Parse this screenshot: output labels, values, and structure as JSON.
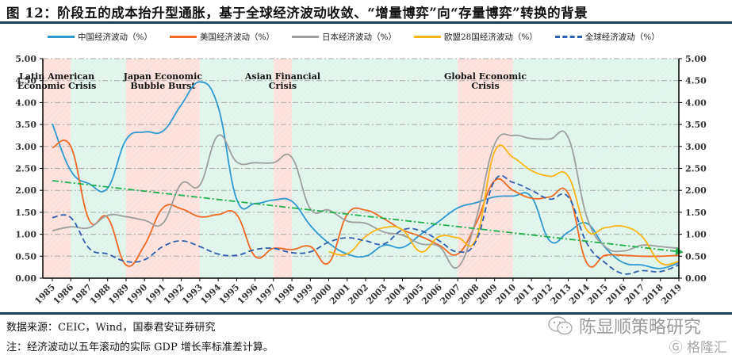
{
  "header": {
    "title": "图 12：阶段五的成本抬升型通胀，基于全球经济波动收敛、“增量博弈”向“存量博弈”转换的背景"
  },
  "footer": {
    "source": "数据来源：CEIC，Wind，国泰君安证券研究",
    "note": "注：经济波动以五年滚动的实际 GDP 增长率标准差计算。",
    "watermark": "陈显顺策略研究",
    "watermark_icon": "wechat-icon",
    "watermark2": "格隆汇"
  },
  "chart_data": {
    "type": "line",
    "title": "图 12：阶段五的成本抬升型通胀，基于全球经济波动收敛、“增量博弈”向“存量博弈”转换的背景",
    "xlabel": "",
    "ylabel": "",
    "ylim": [
      0,
      5
    ],
    "y_ticks": [
      "0.00",
      "0.50",
      "1.00",
      "1.50",
      "2.00",
      "2.50",
      "3.00",
      "3.50",
      "4.00",
      "4.50",
      "5.00"
    ],
    "grid": true,
    "legend_position": "top",
    "categories": [
      "1985",
      "1986",
      "1987",
      "1988",
      "1989",
      "1990",
      "1991",
      "1992",
      "1993",
      "1994",
      "1995",
      "1996",
      "1997",
      "1998",
      "1999",
      "2000",
      "2001",
      "2002",
      "2003",
      "2004",
      "2005",
      "2006",
      "2007",
      "2008",
      "2009",
      "2010",
      "2011",
      "2012",
      "2013",
      "2014",
      "2015",
      "2016",
      "2017",
      "2018",
      "2019"
    ],
    "series": [
      {
        "name": "中国经济波动（%）",
        "color": "#2e9ad0",
        "style": "solid",
        "values": [
          3.52,
          2.45,
          2.15,
          2.05,
          3.15,
          3.33,
          3.35,
          3.95,
          4.47,
          3.9,
          1.8,
          1.7,
          1.78,
          1.75,
          1.2,
          0.8,
          0.55,
          0.5,
          0.75,
          0.7,
          1.0,
          1.3,
          1.6,
          1.72,
          1.85,
          1.87,
          1.85,
          0.85,
          1.05,
          1.25,
          0.7,
          0.35,
          0.3,
          0.22,
          0.35
        ]
      },
      {
        "name": "美国经济波动（%）",
        "color": "#f06a23",
        "style": "solid",
        "values": [
          2.97,
          3.0,
          1.32,
          1.38,
          0.3,
          0.75,
          1.6,
          1.58,
          1.4,
          1.45,
          1.45,
          0.5,
          0.68,
          0.65,
          0.72,
          0.35,
          1.45,
          1.55,
          1.35,
          1.1,
          0.95,
          0.75,
          0.55,
          1.25,
          2.22,
          2.0,
          1.82,
          1.85,
          1.93,
          0.35,
          0.52,
          0.52,
          0.5,
          0.5,
          0.52
        ]
      },
      {
        "name": "日本经济波动（%）",
        "color": "#9e9e9e",
        "style": "solid",
        "values": [
          1.08,
          1.17,
          1.15,
          1.43,
          1.4,
          1.32,
          1.25,
          2.15,
          2.12,
          3.25,
          2.65,
          2.63,
          2.63,
          2.75,
          1.58,
          1.55,
          1.3,
          1.25,
          1.05,
          0.98,
          0.78,
          0.72,
          0.25,
          1.35,
          3.05,
          3.25,
          3.18,
          3.17,
          3.2,
          1.4,
          0.72,
          0.62,
          0.75,
          0.72,
          0.68
        ]
      },
      {
        "name": "欧盟28国经济波动（%）",
        "color": "#fbb615",
        "style": "solid",
        "values": [
          null,
          null,
          null,
          null,
          null,
          null,
          null,
          null,
          null,
          null,
          null,
          null,
          null,
          null,
          null,
          0.6,
          0.55,
          0.95,
          1.15,
          1.1,
          0.6,
          0.95,
          0.92,
          0.9,
          2.88,
          2.75,
          2.45,
          2.32,
          2.32,
          1.1,
          1.15,
          1.18,
          0.95,
          0.35,
          0.38
        ]
      },
      {
        "name": "全球经济波动（%）",
        "color": "#2e5fae",
        "style": "dashed",
        "values": [
          1.38,
          1.38,
          0.68,
          0.55,
          0.38,
          0.42,
          0.72,
          0.85,
          0.72,
          0.55,
          0.52,
          0.65,
          0.68,
          0.58,
          0.6,
          0.82,
          0.92,
          0.85,
          0.78,
          1.1,
          1.08,
          0.85,
          0.6,
          0.85,
          2.22,
          2.18,
          2.0,
          1.8,
          1.85,
          0.8,
          0.35,
          0.1,
          0.17,
          0.15,
          0.3
        ]
      }
    ],
    "trendline": {
      "name": "trend",
      "color": "#1fb14a",
      "style": "dash-dot-arrow",
      "start": {
        "x": "1985",
        "y": 2.22
      },
      "end": {
        "x": "2019",
        "y": 0.6
      }
    },
    "bands": [
      {
        "from": "1985",
        "to": "1986",
        "type": "crisis",
        "label": [
          "Latin American",
          "Economic Crisis"
        ]
      },
      {
        "from": "1986",
        "to": "1989",
        "type": "calm",
        "label": []
      },
      {
        "from": "1989",
        "to": "1993",
        "type": "crisis",
        "label": [
          "Japan Economic",
          "Bubble Burst"
        ]
      },
      {
        "from": "1993",
        "to": "1997",
        "type": "calm",
        "label": []
      },
      {
        "from": "1997",
        "to": "1998",
        "type": "crisis",
        "label": [
          "Asian Financial",
          "Crisis"
        ]
      },
      {
        "from": "1998",
        "to": "2007",
        "type": "calm",
        "label": []
      },
      {
        "from": "2007",
        "to": "2010",
        "type": "crisis",
        "label": [
          "Global Economic",
          "Crisis"
        ]
      },
      {
        "from": "2010",
        "to": "2019",
        "type": "calm",
        "label": []
      }
    ],
    "band_colors": {
      "crisis": "#fde0dc",
      "calm": "#dff4ea"
    }
  }
}
